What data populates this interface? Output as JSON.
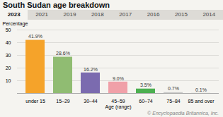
{
  "chart_data": {
    "type": "bar",
    "title": "South Sudan age breakdown",
    "annotations": [
      "2023",
      "2021",
      "2019",
      "2018",
      "2017",
      "2016",
      "2015",
      "2014",
      "© Encyclopaedia Britannica, Inc."
    ],
    "categories": [
      "under 15",
      "15–29",
      "30–44",
      "45–59",
      "60–74",
      "75–84",
      "85 and over"
    ],
    "values": [
      41.9,
      28.6,
      16.2,
      9.0,
      3.5,
      0.7,
      0.1
    ],
    "value_labels": [
      "41.9%",
      "28.6%",
      "16.2%",
      "9.0%",
      "3.5%",
      "0.7%",
      "0.1%"
    ],
    "data_labels": true,
    "colors": [
      "#f5a32a",
      "#90bc72",
      "#7b6baf",
      "#f0a0a8",
      "#4caf50",
      "#c8c8c8",
      "#c8c8c8"
    ],
    "xlabel": "Age (range)",
    "ylabel": "Percentage",
    "ylim": [
      0,
      50
    ],
    "yticks": [
      10,
      20,
      30,
      40,
      50
    ],
    "grid": true
  }
}
